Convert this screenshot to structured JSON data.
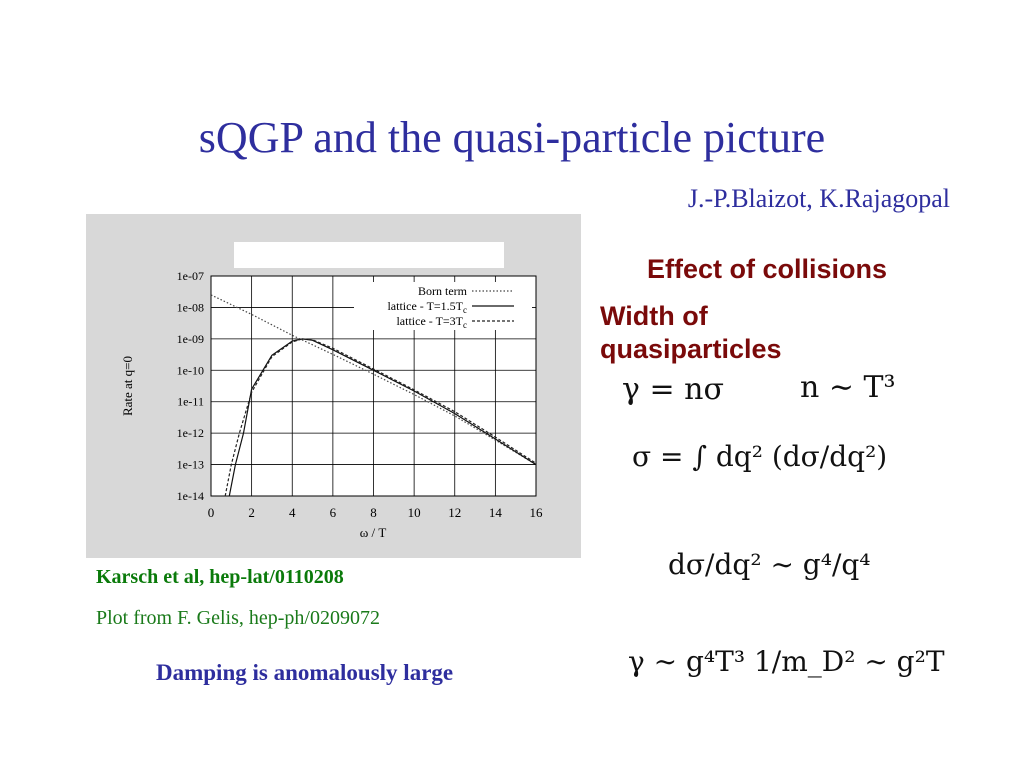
{
  "slide": {
    "title": "sQGP and the quasi-particle picture",
    "authors": "J.-P.Blaizot, K.Rajagopal",
    "effect_heading": "Effect of collisions",
    "width_heading": "Width of quasiparticles",
    "caption_karsch": "Karsch et al, hep-lat/0110208",
    "caption_plot": "Plot from F. Gelis, hep-ph/0209072",
    "caption_damping": "Damping is anomalously large"
  },
  "equations": {
    "eq1a": "γ = nσ",
    "eq1b": "n ∼ T³",
    "eq2": "σ = ∫ dq² (dσ/dq²)",
    "eq3": "dσ/dq² ∼ g⁴/q⁴",
    "eq4": "γ ∼ g⁴T³ 1/m_D² ∼ g²T"
  },
  "chart_data": {
    "type": "line",
    "xlabel": "ω / T",
    "ylabel": "Rate at q=0",
    "xlim": [
      0,
      16
    ],
    "ylim_log10": [
      -14,
      -7
    ],
    "x_ticks": [
      "0",
      "2",
      "4",
      "6",
      "8",
      "10",
      "12",
      "14",
      "16"
    ],
    "y_ticks": [
      "1e-07",
      "1e-08",
      "1e-09",
      "1e-10",
      "1e-11",
      "1e-12",
      "1e-13",
      "1e-14"
    ],
    "grid": true,
    "legend_position": "top-right",
    "series": [
      {
        "name": "Born term",
        "style": "dotted",
        "x": [
          0,
          2,
          4,
          6,
          8,
          10,
          12,
          14,
          16
        ],
        "y": [
          2.5e-08,
          6e-09,
          1.3e-09,
          3.2e-10,
          7.5e-11,
          1.7e-11,
          3.5e-12,
          6e-13,
          1e-13
        ]
      },
      {
        "name": "lattice - T=1.5T",
        "subscript": "c",
        "style": "solid",
        "x": [
          0.9,
          1.2,
          1.6,
          2,
          3,
          4,
          4.5,
          5,
          6,
          8,
          10,
          12,
          14,
          16
        ],
        "y": [
          1e-14,
          1e-13,
          1e-12,
          2.5e-11,
          3e-10,
          8.5e-10,
          1e-09,
          9e-10,
          4.5e-10,
          1e-10,
          2.2e-11,
          4.2e-12,
          6.5e-13,
          1e-13
        ]
      },
      {
        "name": "lattice - T=3T",
        "subscript": "c",
        "style": "dashed",
        "x": [
          0.7,
          1,
          1.4,
          2,
          3,
          4,
          4.5,
          5,
          6,
          8,
          10,
          12,
          14,
          16
        ],
        "y": [
          1e-14,
          1e-13,
          1e-12,
          2e-11,
          2.7e-10,
          8e-10,
          1e-09,
          9.3e-10,
          5e-10,
          1.1e-10,
          2.4e-11,
          4.8e-12,
          7.5e-13,
          1.1e-13
        ]
      }
    ]
  }
}
